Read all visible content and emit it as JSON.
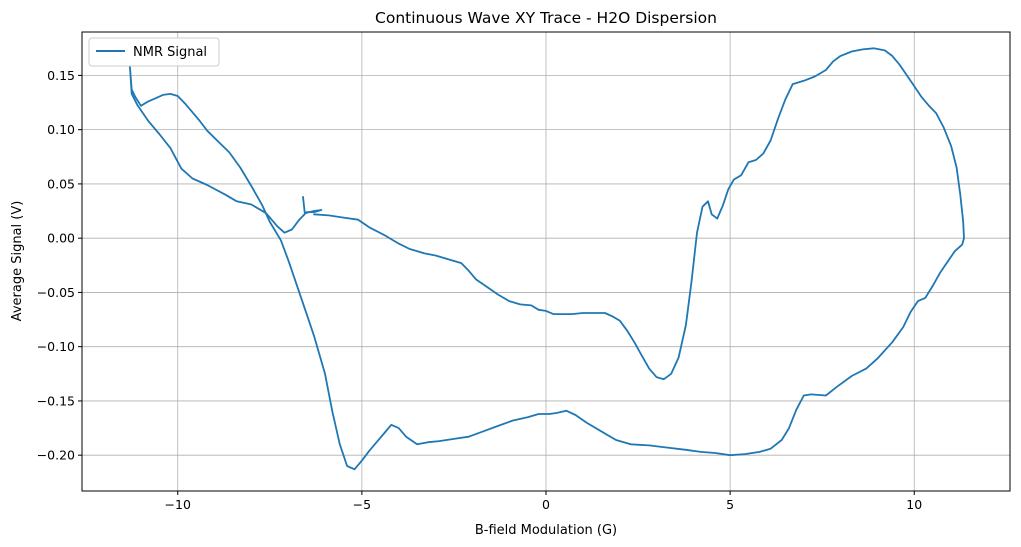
{
  "chart_data": {
    "type": "line",
    "title": "Continuous Wave XY Trace - H2O Dispersion",
    "xlabel": "B-field Modulation (G)",
    "ylabel": "Average Signal (V)",
    "xlim": [
      -12.6,
      12.6
    ],
    "ylim": [
      -0.233,
      0.19
    ],
    "xticks": [
      -10,
      -5,
      0,
      5,
      10
    ],
    "xtick_labels": [
      "−10",
      "−5",
      "0",
      "5",
      "10"
    ],
    "yticks": [
      -0.2,
      -0.15,
      -0.1,
      -0.05,
      0.0,
      0.05,
      0.1,
      0.15
    ],
    "ytick_labels": [
      "−0.20",
      "−0.15",
      "−0.10",
      "−0.05",
      "0.00",
      "0.05",
      "0.10",
      "0.15"
    ],
    "grid": true,
    "legend_position": "top-left",
    "series": [
      {
        "name": "NMR Signal",
        "color": "#1f77b4",
        "points": [
          [
            -6.6,
            0.038
          ],
          [
            -6.55,
            0.023
          ],
          [
            -6.3,
            0.025
          ],
          [
            -6.1,
            0.026
          ],
          [
            -6.3,
            0.024
          ],
          [
            -6.5,
            0.024
          ],
          [
            -6.7,
            0.017
          ],
          [
            -6.9,
            0.008
          ],
          [
            -7.1,
            0.005
          ],
          [
            -7.3,
            0.011
          ],
          [
            -7.6,
            0.023
          ],
          [
            -8.0,
            0.031
          ],
          [
            -8.4,
            0.034
          ],
          [
            -8.7,
            0.04
          ],
          [
            -9.2,
            0.049
          ],
          [
            -9.6,
            0.055
          ],
          [
            -9.9,
            0.064
          ],
          [
            -10.2,
            0.083
          ],
          [
            -10.5,
            0.096
          ],
          [
            -10.8,
            0.108
          ],
          [
            -11.1,
            0.123
          ],
          [
            -11.25,
            0.133
          ],
          [
            -11.3,
            0.158
          ],
          [
            -11.25,
            0.137
          ],
          [
            -11.15,
            0.13
          ],
          [
            -11.0,
            0.122
          ],
          [
            -10.8,
            0.126
          ],
          [
            -10.6,
            0.129
          ],
          [
            -10.4,
            0.132
          ],
          [
            -10.2,
            0.133
          ],
          [
            -10.0,
            0.131
          ],
          [
            -9.8,
            0.124
          ],
          [
            -9.6,
            0.116
          ],
          [
            -9.4,
            0.108
          ],
          [
            -9.2,
            0.099
          ],
          [
            -8.9,
            0.089
          ],
          [
            -8.6,
            0.079
          ],
          [
            -8.3,
            0.065
          ],
          [
            -8.0,
            0.048
          ],
          [
            -7.7,
            0.03
          ],
          [
            -7.5,
            0.015
          ],
          [
            -7.2,
            -0.002
          ],
          [
            -7.0,
            -0.02
          ],
          [
            -6.8,
            -0.04
          ],
          [
            -6.6,
            -0.06
          ],
          [
            -6.3,
            -0.09
          ],
          [
            -6.0,
            -0.125
          ],
          [
            -5.8,
            -0.16
          ],
          [
            -5.6,
            -0.19
          ],
          [
            -5.4,
            -0.21
          ],
          [
            -5.2,
            -0.213
          ],
          [
            -5.0,
            -0.205
          ],
          [
            -4.8,
            -0.196
          ],
          [
            -4.6,
            -0.188
          ],
          [
            -4.4,
            -0.18
          ],
          [
            -4.2,
            -0.172
          ],
          [
            -4.0,
            -0.175
          ],
          [
            -3.8,
            -0.183
          ],
          [
            -3.5,
            -0.19
          ],
          [
            -3.2,
            -0.188
          ],
          [
            -2.9,
            -0.187
          ],
          [
            -2.5,
            -0.185
          ],
          [
            -2.1,
            -0.183
          ],
          [
            -1.7,
            -0.178
          ],
          [
            -1.3,
            -0.173
          ],
          [
            -0.9,
            -0.168
          ],
          [
            -0.5,
            -0.165
          ],
          [
            -0.2,
            -0.162
          ],
          [
            0.1,
            -0.162
          ],
          [
            0.3,
            -0.161
          ],
          [
            0.55,
            -0.159
          ],
          [
            0.8,
            -0.163
          ],
          [
            1.1,
            -0.17
          ],
          [
            1.5,
            -0.178
          ],
          [
            1.9,
            -0.186
          ],
          [
            2.3,
            -0.19
          ],
          [
            2.8,
            -0.191
          ],
          [
            3.3,
            -0.193
          ],
          [
            3.8,
            -0.195
          ],
          [
            4.2,
            -0.197
          ],
          [
            4.6,
            -0.198
          ],
          [
            5.0,
            -0.2
          ],
          [
            5.4,
            -0.199
          ],
          [
            5.8,
            -0.197
          ],
          [
            6.1,
            -0.194
          ],
          [
            6.4,
            -0.186
          ],
          [
            6.6,
            -0.175
          ],
          [
            6.8,
            -0.158
          ],
          [
            7.0,
            -0.145
          ],
          [
            7.2,
            -0.144
          ],
          [
            7.6,
            -0.145
          ],
          [
            7.9,
            -0.137
          ],
          [
            8.3,
            -0.127
          ],
          [
            8.7,
            -0.12
          ],
          [
            9.0,
            -0.111
          ],
          [
            9.4,
            -0.096
          ],
          [
            9.7,
            -0.082
          ],
          [
            9.9,
            -0.068
          ],
          [
            10.1,
            -0.058
          ],
          [
            10.3,
            -0.055
          ],
          [
            10.5,
            -0.044
          ],
          [
            10.7,
            -0.032
          ],
          [
            10.9,
            -0.022
          ],
          [
            11.1,
            -0.012
          ],
          [
            11.3,
            -0.006
          ],
          [
            11.35,
            0.0
          ],
          [
            11.33,
            0.015
          ],
          [
            11.25,
            0.04
          ],
          [
            11.15,
            0.065
          ],
          [
            11.0,
            0.085
          ],
          [
            10.8,
            0.102
          ],
          [
            10.6,
            0.115
          ],
          [
            10.4,
            0.122
          ],
          [
            10.2,
            0.13
          ],
          [
            10.0,
            0.14
          ],
          [
            9.8,
            0.15
          ],
          [
            9.6,
            0.16
          ],
          [
            9.4,
            0.168
          ],
          [
            9.2,
            0.173
          ],
          [
            8.9,
            0.175
          ],
          [
            8.6,
            0.174
          ],
          [
            8.3,
            0.172
          ],
          [
            8.0,
            0.168
          ],
          [
            7.8,
            0.163
          ],
          [
            7.6,
            0.155
          ],
          [
            7.3,
            0.149
          ],
          [
            7.0,
            0.145
          ],
          [
            6.7,
            0.142
          ],
          [
            6.5,
            0.128
          ],
          [
            6.3,
            0.11
          ],
          [
            6.1,
            0.09
          ],
          [
            5.9,
            0.078
          ],
          [
            5.7,
            0.072
          ],
          [
            5.5,
            0.07
          ],
          [
            5.3,
            0.058
          ],
          [
            5.1,
            0.054
          ],
          [
            4.95,
            0.045
          ],
          [
            4.8,
            0.03
          ],
          [
            4.65,
            0.018
          ],
          [
            4.5,
            0.022
          ],
          [
            4.4,
            0.034
          ],
          [
            4.25,
            0.029
          ],
          [
            4.1,
            0.005
          ],
          [
            3.95,
            -0.04
          ],
          [
            3.8,
            -0.08
          ],
          [
            3.6,
            -0.11
          ],
          [
            3.4,
            -0.125
          ],
          [
            3.2,
            -0.13
          ],
          [
            3.0,
            -0.128
          ],
          [
            2.8,
            -0.12
          ],
          [
            2.6,
            -0.108
          ],
          [
            2.4,
            -0.096
          ],
          [
            2.2,
            -0.085
          ],
          [
            2.0,
            -0.076
          ],
          [
            1.8,
            -0.072
          ],
          [
            1.6,
            -0.069
          ],
          [
            1.3,
            -0.069
          ],
          [
            1.0,
            -0.069
          ],
          [
            0.7,
            -0.07
          ],
          [
            0.5,
            -0.07
          ],
          [
            0.2,
            -0.07
          ],
          [
            0.0,
            -0.067
          ],
          [
            -0.2,
            -0.066
          ],
          [
            -0.4,
            -0.062
          ],
          [
            -0.7,
            -0.061
          ],
          [
            -1.0,
            -0.058
          ],
          [
            -1.3,
            -0.052
          ],
          [
            -1.6,
            -0.045
          ],
          [
            -1.9,
            -0.038
          ],
          [
            -2.1,
            -0.03
          ],
          [
            -2.3,
            -0.023
          ],
          [
            -2.6,
            -0.02
          ],
          [
            -3.0,
            -0.016
          ],
          [
            -3.3,
            -0.014
          ],
          [
            -3.7,
            -0.01
          ],
          [
            -4.0,
            -0.005
          ],
          [
            -4.4,
            0.003
          ],
          [
            -4.8,
            0.01
          ],
          [
            -5.1,
            0.017
          ],
          [
            -5.5,
            0.019
          ],
          [
            -5.9,
            0.021
          ],
          [
            -6.3,
            0.022
          ]
        ]
      }
    ]
  }
}
